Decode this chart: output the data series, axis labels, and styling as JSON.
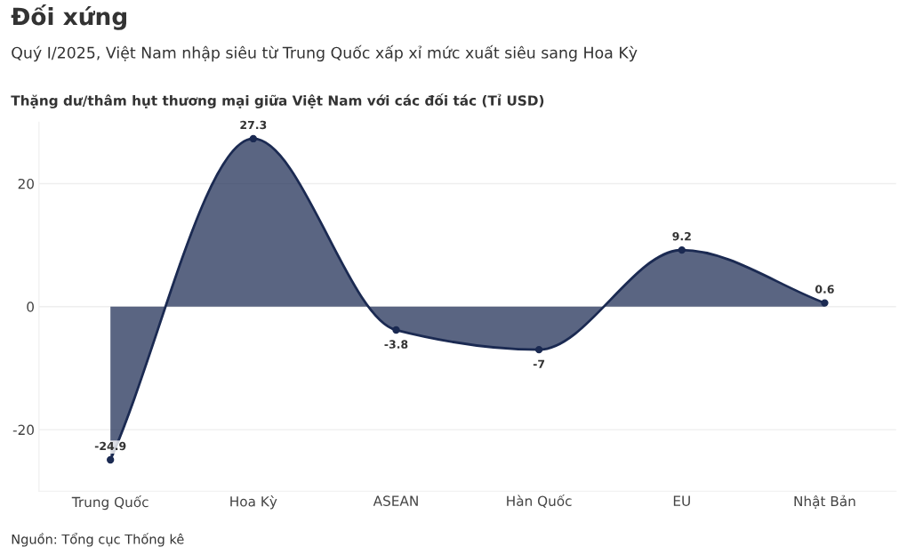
{
  "chart_data": {
    "type": "area",
    "title": "Đối xứng",
    "subtitle": "Quý I/2025, Việt Nam nhập siêu từ Trung Quốc xấp xỉ mức xuất siêu sang Hoa Kỳ",
    "ylabel": "Thặng dư/thâm hụt thương mại giữa Việt Nam với các đối tác (Tỉ USD)",
    "categories": [
      "Trung Quốc",
      "Hoa Kỳ",
      "ASEAN",
      "Hàn Quốc",
      "EU",
      "Nhật Bản"
    ],
    "series": [
      {
        "color": "#1b2a52",
        "values": [
          -24.9,
          27.3,
          -3.8,
          -7,
          9.2,
          0.6
        ]
      }
    ],
    "ylim": [
      -30,
      30
    ],
    "yticks": [
      -20,
      0,
      20
    ],
    "grid": "y",
    "marker": "circle",
    "data_labels": true,
    "annotations": [
      "Nguồn: Tổng cục Thống kê"
    ]
  }
}
